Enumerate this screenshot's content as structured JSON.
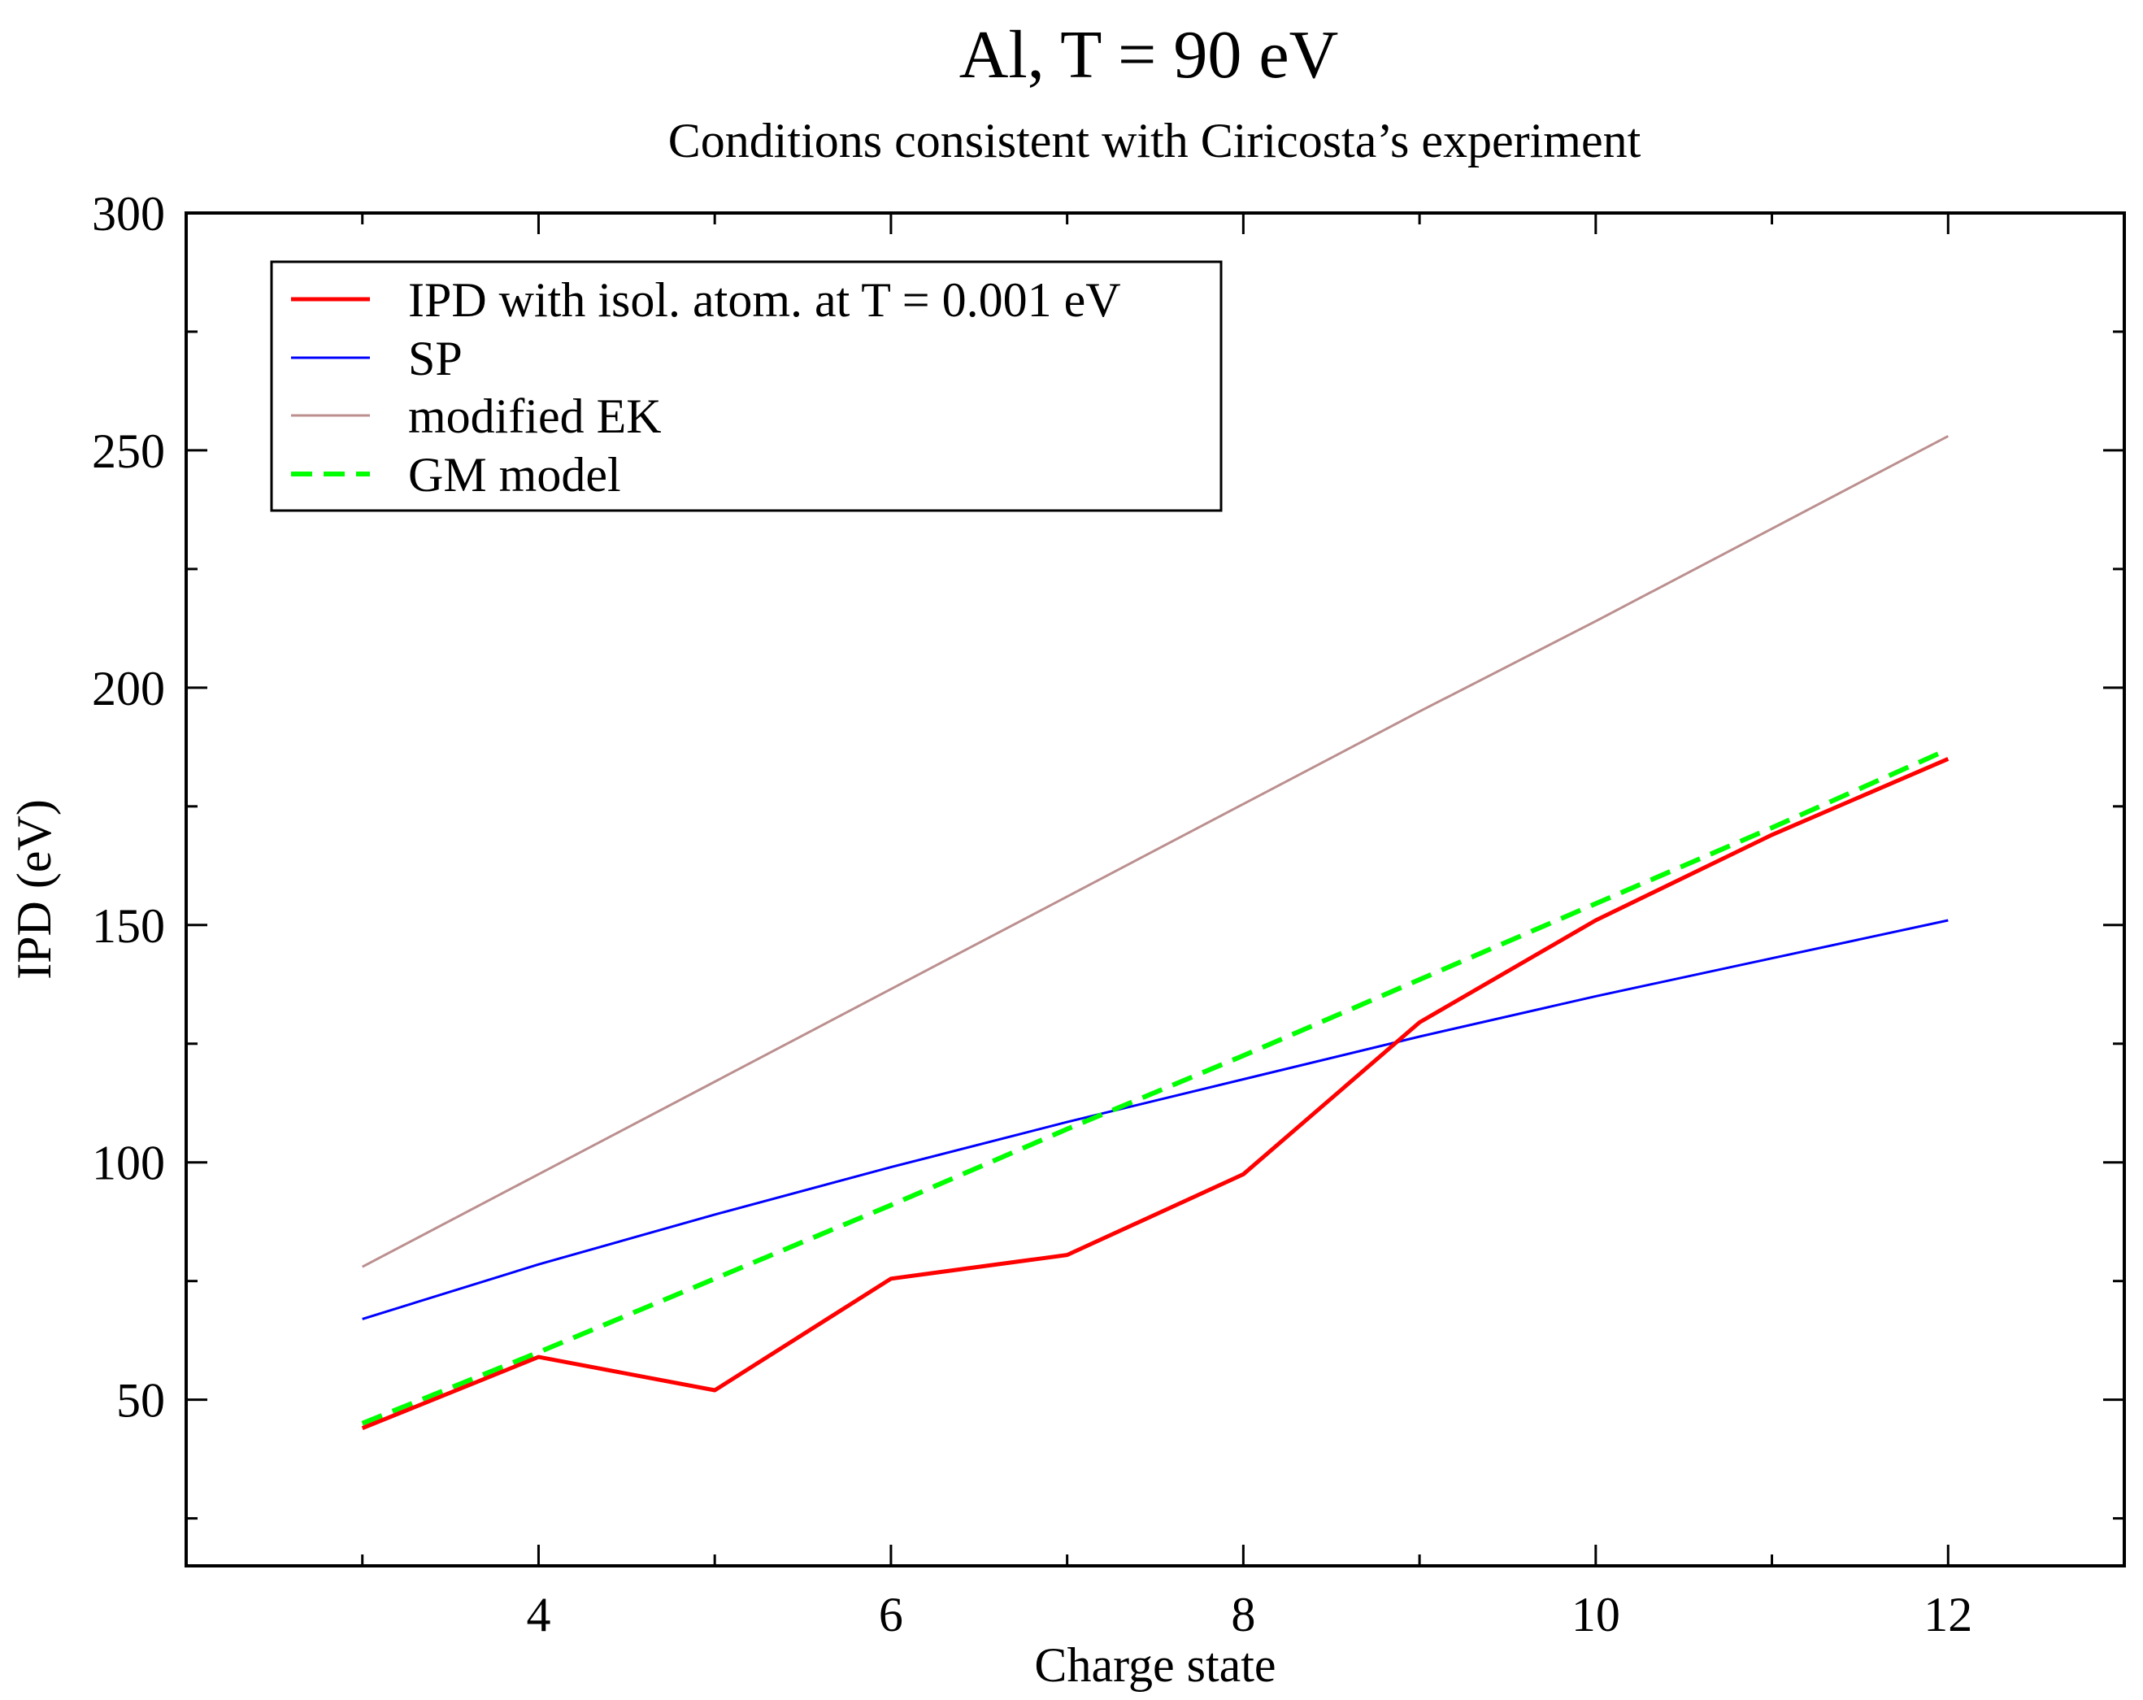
{
  "chart_data": {
    "type": "line",
    "title": "Al, T = 90 eV",
    "subtitle": "Conditions consistent with Ciricosta’s experiment",
    "xlabel": "Charge state",
    "ylabel": "IPD (eV)",
    "xlim": [
      2,
      13
    ],
    "ylim": [
      15,
      300
    ],
    "xticks": [
      4,
      6,
      8,
      10,
      12
    ],
    "xticks_minor": [
      3,
      5,
      7,
      9,
      11
    ],
    "yticks": [
      50,
      100,
      150,
      200,
      250,
      300
    ],
    "yticks_minor": [
      25,
      75,
      125,
      175,
      225,
      275
    ],
    "grid": false,
    "legend_position": "top-left",
    "series": [
      {
        "name": "IPD with isol. atom. at T = 0.001 eV",
        "color": "#ff0000",
        "style": "solid",
        "x": [
          3,
          4,
          5,
          6,
          7,
          8,
          9,
          10,
          11,
          12
        ],
        "y": [
          44,
          59,
          52,
          75.5,
          80.5,
          97.5,
          129.5,
          151,
          169,
          185
        ]
      },
      {
        "name": "SP",
        "color": "#0000ff",
        "style": "solid",
        "x": [
          3,
          4,
          5,
          6,
          7,
          8,
          9,
          10,
          11,
          12
        ],
        "y": [
          67,
          78.5,
          89,
          99,
          108.5,
          117.5,
          126.5,
          135,
          143,
          151
        ]
      },
      {
        "name": "modified EK",
        "color": "#bc8f8f",
        "style": "solid",
        "x": [
          3,
          4,
          5,
          6,
          7,
          8,
          9,
          10,
          11,
          12
        ],
        "y": [
          78,
          97.5,
          117,
          136.5,
          156,
          175.5,
          195,
          214,
          233.5,
          253
        ]
      },
      {
        "name": "GM model",
        "color": "#00ff00",
        "style": "dashed",
        "x": [
          3,
          4,
          5,
          6,
          7,
          8,
          9,
          10,
          11,
          12
        ],
        "y": [
          45,
          60,
          75.5,
          91,
          107,
          122.5,
          138.5,
          154.5,
          170.5,
          187
        ]
      }
    ]
  }
}
